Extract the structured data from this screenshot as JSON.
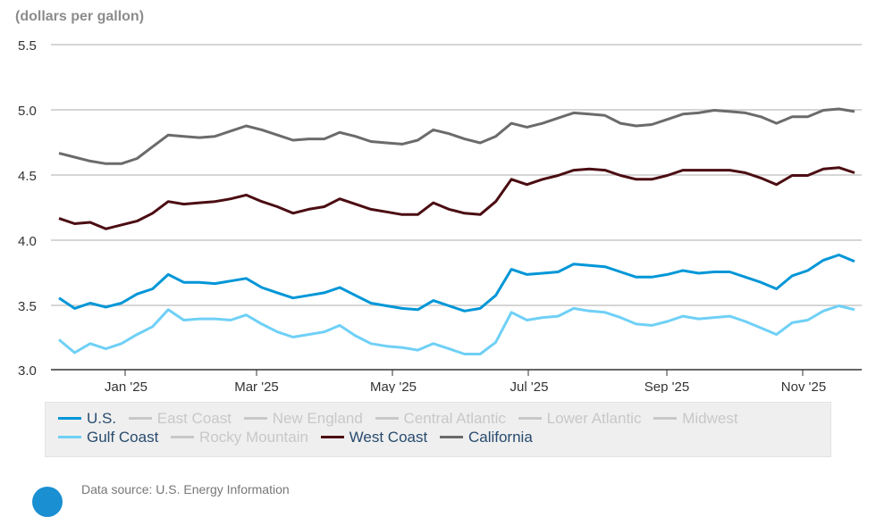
{
  "chart": {
    "units_label": "(dollars per gallon)",
    "y_ticks": [
      "5.5",
      "5.0",
      "4.5",
      "4.0",
      "3.5",
      "3.0"
    ],
    "x_ticks": [
      "Jan '25",
      "Mar '25",
      "May '25",
      "Jul '25",
      "Sep '25",
      "Nov '25"
    ]
  },
  "legend": {
    "row1": [
      {
        "label": "U.S.",
        "color": "#0096d7",
        "active": true
      },
      {
        "label": "East Coast",
        "color": "#c8c8c8",
        "active": false
      },
      {
        "label": "New England",
        "color": "#c8c8c8",
        "active": false
      },
      {
        "label": "Central Atlantic",
        "color": "#c8c8c8",
        "active": false
      },
      {
        "label": "Lower Atlantic",
        "color": "#c8c8c8",
        "active": false
      },
      {
        "label": "Midwest",
        "color": "#c8c8c8",
        "active": false
      }
    ],
    "row2": [
      {
        "label": "Gulf Coast",
        "color": "#6fd0f6",
        "active": true
      },
      {
        "label": "Rocky Mountain",
        "color": "#c8c8c8",
        "active": false
      },
      {
        "label": "West Coast",
        "color": "#4b0d12",
        "active": true
      },
      {
        "label": "California",
        "color": "#6b6b6b",
        "active": true
      }
    ]
  },
  "footer": {
    "source_text": "Data source: U.S. Energy Information"
  },
  "chart_data": {
    "type": "line",
    "title": "",
    "xlabel": "",
    "ylabel": "(dollars per gallon)",
    "ylim": [
      3.0,
      5.5
    ],
    "grid": true,
    "legend_position": "bottom",
    "x_tick_labels": [
      "Jan '25",
      "Mar '25",
      "May '25",
      "Jul '25",
      "Sep '25",
      "Nov '25"
    ],
    "x_description": "Weekly observations from roughly mid-Dec 2024 through early Dec 2025 (52 weeks)",
    "series": [
      {
        "name": "California",
        "color": "#6b6b6b",
        "values": [
          4.66,
          4.63,
          4.6,
          4.58,
          4.58,
          4.62,
          4.71,
          4.8,
          4.79,
          4.78,
          4.79,
          4.83,
          4.87,
          4.84,
          4.8,
          4.76,
          4.77,
          4.77,
          4.82,
          4.79,
          4.75,
          4.74,
          4.73,
          4.76,
          4.84,
          4.81,
          4.77,
          4.74,
          4.79,
          4.89,
          4.86,
          4.89,
          4.93,
          4.97,
          4.96,
          4.95,
          4.89,
          4.87,
          4.88,
          4.92,
          4.96,
          4.97,
          4.99,
          4.98,
          4.97,
          4.94,
          4.89,
          4.94,
          4.94,
          4.99,
          5.0,
          4.98
        ]
      },
      {
        "name": "West Coast",
        "color": "#4b0d12",
        "values": [
          4.16,
          4.12,
          4.13,
          4.08,
          4.11,
          4.14,
          4.2,
          4.29,
          4.27,
          4.28,
          4.29,
          4.31,
          4.34,
          4.29,
          4.25,
          4.2,
          4.23,
          4.25,
          4.31,
          4.27,
          4.23,
          4.21,
          4.19,
          4.19,
          4.28,
          4.23,
          4.2,
          4.19,
          4.29,
          4.46,
          4.42,
          4.46,
          4.49,
          4.53,
          4.54,
          4.53,
          4.49,
          4.46,
          4.46,
          4.49,
          4.53,
          4.53,
          4.53,
          4.53,
          4.51,
          4.47,
          4.42,
          4.49,
          4.49,
          4.54,
          4.55,
          4.51
        ]
      },
      {
        "name": "U.S.",
        "color": "#0096d7",
        "values": [
          3.55,
          3.47,
          3.51,
          3.48,
          3.51,
          3.58,
          3.62,
          3.73,
          3.67,
          3.67,
          3.66,
          3.68,
          3.7,
          3.63,
          3.59,
          3.55,
          3.57,
          3.59,
          3.63,
          3.57,
          3.51,
          3.49,
          3.47,
          3.46,
          3.53,
          3.49,
          3.45,
          3.47,
          3.57,
          3.77,
          3.73,
          3.74,
          3.75,
          3.81,
          3.8,
          3.79,
          3.75,
          3.71,
          3.71,
          3.73,
          3.76,
          3.74,
          3.75,
          3.75,
          3.71,
          3.67,
          3.62,
          3.72,
          3.76,
          3.84,
          3.88,
          3.83
        ]
      },
      {
        "name": "Gulf Coast",
        "color": "#6fd0f6",
        "values": [
          3.23,
          3.13,
          3.2,
          3.16,
          3.2,
          3.27,
          3.33,
          3.46,
          3.38,
          3.39,
          3.39,
          3.38,
          3.42,
          3.35,
          3.29,
          3.25,
          3.27,
          3.29,
          3.34,
          3.26,
          3.2,
          3.18,
          3.17,
          3.15,
          3.2,
          3.16,
          3.12,
          3.12,
          3.21,
          3.44,
          3.38,
          3.4,
          3.41,
          3.47,
          3.45,
          3.44,
          3.4,
          3.35,
          3.34,
          3.37,
          3.41,
          3.39,
          3.4,
          3.41,
          3.37,
          3.32,
          3.27,
          3.36,
          3.38,
          3.45,
          3.49,
          3.46
        ]
      }
    ],
    "inactive_series": [
      "East Coast",
      "New England",
      "Central Atlantic",
      "Lower Atlantic",
      "Midwest",
      "Rocky Mountain"
    ]
  }
}
